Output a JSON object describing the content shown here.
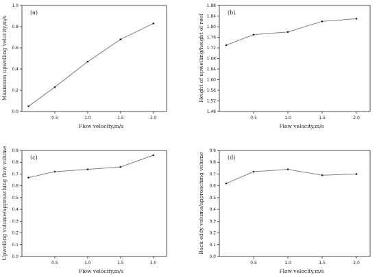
{
  "chart_data": [
    {
      "type": "line",
      "panel_label": "(a)",
      "xlabel": "Flow velocity,m/s",
      "ylabel": "Maximum upwelling velocity,m/s",
      "xlim": [
        0,
        2.2
      ],
      "ylim": [
        0,
        1.0
      ],
      "xticks": [
        "0.5",
        "1.0",
        "1.5",
        "2.0"
      ],
      "yticks": [
        "0.0",
        "0.2",
        "0.4",
        "0.6",
        "0.8",
        "1.0"
      ],
      "grid": false,
      "series": [
        {
          "x": [
            0.1,
            0.5,
            1.0,
            1.5,
            2.0
          ],
          "values": [
            0.05,
            0.23,
            0.47,
            0.68,
            0.83
          ]
        }
      ]
    },
    {
      "type": "line",
      "panel_label": "(b)",
      "xlabel": "Flow velocity,m/s",
      "ylabel": "Height of upwelling/height of reef",
      "xlim": [
        0,
        2.2
      ],
      "ylim": [
        1.48,
        1.88
      ],
      "xticks": [
        "0.5",
        "1.0",
        "1.5",
        "2.0"
      ],
      "yticks": [
        "1.48",
        "1.52",
        "1.56",
        "1.60",
        "1.64",
        "1.68",
        "1.72",
        "1.76",
        "1.80",
        "1.84",
        "1.88"
      ],
      "grid": false,
      "series": [
        {
          "x": [
            0.1,
            0.5,
            1.0,
            1.5,
            2.0
          ],
          "values": [
            1.73,
            1.77,
            1.78,
            1.82,
            1.83
          ]
        }
      ]
    },
    {
      "type": "line",
      "panel_label": "(c)",
      "xlabel": "Flow velocity,m/s",
      "ylabel": "Upwelling volume/approaching flow volume",
      "xlim": [
        0,
        2.2
      ],
      "ylim": [
        0,
        0.9
      ],
      "xticks": [
        "0.5",
        "1.0",
        "1.5",
        "2.0"
      ],
      "yticks": [
        "0.0",
        "0.1",
        "0.2",
        "0.3",
        "0.4",
        "0.5",
        "0.6",
        "0.7",
        "0.8",
        "0.9"
      ],
      "grid": false,
      "series": [
        {
          "x": [
            0.1,
            0.5,
            1.0,
            1.5,
            2.0
          ],
          "values": [
            0.67,
            0.72,
            0.74,
            0.76,
            0.86
          ]
        }
      ]
    },
    {
      "type": "line",
      "panel_label": "(d)",
      "xlabel": "Flow velocity,m/s",
      "ylabel": "Back eddy volume/approaching volume",
      "xlim": [
        0,
        2.2
      ],
      "ylim": [
        0,
        0.9
      ],
      "xticks": [
        "0.5",
        "1.0",
        "1.5",
        "2.0"
      ],
      "yticks": [
        "0.0",
        "0.1",
        "0.2",
        "0.3",
        "0.4",
        "0.5",
        "0.6",
        "0.7",
        "0.8",
        "0.9"
      ],
      "grid": false,
      "series": [
        {
          "x": [
            0.1,
            0.5,
            1.0,
            1.5,
            2.0
          ],
          "values": [
            0.62,
            0.72,
            0.74,
            0.69,
            0.7
          ]
        }
      ]
    }
  ],
  "colors": {
    "line": "#7f7f7f",
    "marker": "#222222",
    "axis": "#222222"
  }
}
